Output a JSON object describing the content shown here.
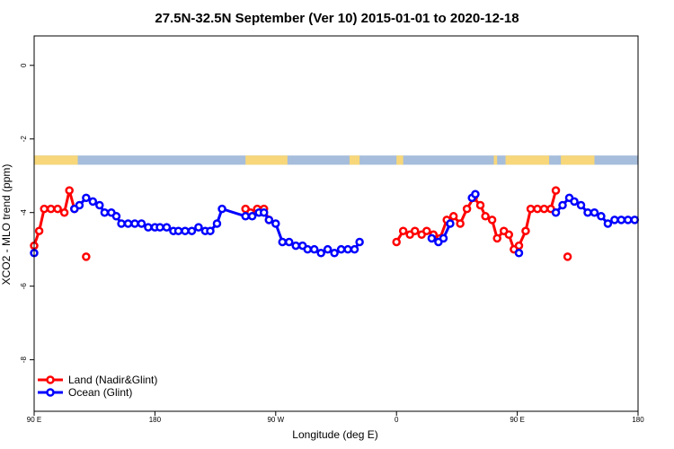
{
  "chart_data": {
    "type": "line",
    "title": "27.5N-32.5N September (Ver 10)   2015-01-01 to 2020-12-18",
    "xlabel": "Longitude (deg E)",
    "ylabel": "XCO2 - MLO trend (ppm)",
    "xlim": [
      -90,
      270
    ],
    "ylim": [
      -9.4,
      0.8
    ],
    "x_ticks": [
      -90,
      -18,
      54,
      126,
      198,
      270
    ],
    "x_tick_labels": [
      "90 E",
      "180",
      "90 W",
      "0",
      "90 E",
      "180"
    ],
    "y_ticks": [
      0,
      -2,
      -4,
      -6,
      -8
    ],
    "y_tick_labels": [
      "0",
      "-2",
      "-4",
      "-6",
      "-8"
    ],
    "grid": false,
    "legend_position": "bottom-left",
    "map_strip": {
      "y_range": [
        -2.7,
        -2.45
      ],
      "ocean_color": "#a6bddb",
      "land_color": "#f7d77a",
      "land_segments": [
        [
          -90,
          -64
        ],
        [
          36,
          61
        ],
        [
          98,
          104
        ],
        [
          126,
          130
        ],
        [
          184,
          186
        ],
        [
          191,
          217
        ],
        [
          224,
          244
        ]
      ]
    },
    "series": [
      {
        "name": "Land (Nadir&Glint)",
        "color": "#ff0000",
        "segments": [
          [
            [
              -90,
              -4.9
            ],
            [
              -87,
              -4.5
            ],
            [
              -84,
              -3.9
            ],
            [
              -80,
              -3.9
            ],
            [
              -76,
              -3.9
            ],
            [
              -72,
              -4.0
            ],
            [
              -69,
              -3.4
            ],
            [
              -66,
              -3.9
            ]
          ],
          [
            [
              36,
              -3.9
            ],
            [
              39,
              -4.0
            ],
            [
              43,
              -3.9
            ],
            [
              47,
              -3.9
            ],
            [
              50,
              -4.2
            ]
          ],
          [
            [
              126,
              -4.8
            ],
            [
              130,
              -4.5
            ],
            [
              134,
              -4.6
            ],
            [
              137,
              -4.5
            ],
            [
              141,
              -4.6
            ],
            [
              144,
              -4.5
            ],
            [
              148,
              -4.6
            ],
            [
              152,
              -4.7
            ],
            [
              156,
              -4.2
            ],
            [
              160,
              -4.1
            ],
            [
              164,
              -4.3
            ],
            [
              168,
              -3.9
            ],
            [
              172,
              -3.6
            ],
            [
              176,
              -3.8
            ],
            [
              179,
              -4.1
            ],
            [
              183,
              -4.2
            ],
            [
              186,
              -4.7
            ],
            [
              190,
              -4.5
            ],
            [
              193,
              -4.6
            ],
            [
              196,
              -5.0
            ],
            [
              199,
              -4.9
            ],
            [
              203,
              -4.5
            ],
            [
              206,
              -3.9
            ],
            [
              210,
              -3.9
            ],
            [
              214,
              -3.9
            ],
            [
              218,
              -3.9
            ],
            [
              221,
              -3.4
            ]
          ]
        ],
        "isolated_points": [
          [
            -59,
            -5.2
          ],
          [
            228,
            -5.2
          ]
        ]
      },
      {
        "name": "Ocean (Glint)",
        "color": "#0000ff",
        "segments": [
          [
            [
              -90,
              -5.1
            ]
          ],
          [
            [
              -66,
              -3.9
            ],
            [
              -63,
              -3.8
            ],
            [
              -59,
              -3.6
            ],
            [
              -55,
              -3.7
            ],
            [
              -51,
              -3.8
            ],
            [
              -48,
              -4.0
            ],
            [
              -44,
              -4.0
            ],
            [
              -41,
              -4.1
            ],
            [
              -38,
              -4.3
            ],
            [
              -34,
              -4.3
            ],
            [
              -30,
              -4.3
            ],
            [
              -26,
              -4.3
            ],
            [
              -22,
              -4.4
            ],
            [
              -18,
              -4.4
            ],
            [
              -15,
              -4.4
            ],
            [
              -11,
              -4.4
            ],
            [
              -7,
              -4.5
            ],
            [
              -4,
              -4.5
            ],
            [
              0,
              -4.5
            ],
            [
              4,
              -4.5
            ],
            [
              8,
              -4.4
            ],
            [
              12,
              -4.5
            ],
            [
              15,
              -4.5
            ],
            [
              19,
              -4.3
            ],
            [
              22,
              -3.9
            ],
            [
              36,
              -4.1
            ],
            [
              40,
              -4.1
            ],
            [
              44,
              -4.0
            ],
            [
              47,
              -4.0
            ],
            [
              50,
              -4.2
            ],
            [
              54,
              -4.3
            ],
            [
              58,
              -4.8
            ],
            [
              62,
              -4.8
            ],
            [
              66,
              -4.9
            ],
            [
              70,
              -4.9
            ],
            [
              73,
              -5.0
            ],
            [
              77,
              -5.0
            ],
            [
              81,
              -5.1
            ],
            [
              85,
              -5.0
            ],
            [
              89,
              -5.1
            ],
            [
              93,
              -5.0
            ],
            [
              97,
              -5.0
            ],
            [
              101,
              -5.0
            ],
            [
              104,
              -4.8
            ]
          ],
          [
            [
              147,
              -4.7
            ],
            [
              151,
              -4.8
            ],
            [
              154,
              -4.7
            ],
            [
              158,
              -4.3
            ]
          ],
          [
            [
              171,
              -3.6
            ],
            [
              173,
              -3.5
            ]
          ],
          [
            [
              199,
              -5.1
            ]
          ],
          [
            [
              221,
              -4.0
            ],
            [
              225,
              -3.8
            ],
            [
              229,
              -3.6
            ],
            [
              232,
              -3.7
            ],
            [
              236,
              -3.8
            ],
            [
              240,
              -4.0
            ],
            [
              244,
              -4.0
            ],
            [
              248,
              -4.1
            ],
            [
              252,
              -4.3
            ],
            [
              256,
              -4.2
            ],
            [
              260,
              -4.2
            ],
            [
              264,
              -4.2
            ],
            [
              268,
              -4.2
            ]
          ]
        ],
        "isolated_points": []
      }
    ]
  }
}
